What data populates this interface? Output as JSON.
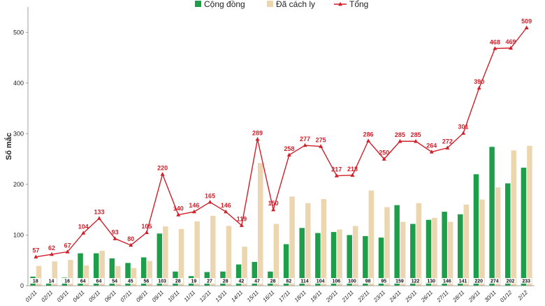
{
  "chart_data": {
    "type": "bar",
    "ylabel": "Số mắc",
    "ylim": [
      0,
      550
    ],
    "yticks": [
      "0",
      "100",
      "200",
      "300",
      "400",
      "500"
    ],
    "categories": [
      "01/11",
      "02/11",
      "03/11",
      "04/11",
      "05/11",
      "06/11",
      "07/11",
      "08/11",
      "09/11",
      "10/11",
      "11/11",
      "12/11",
      "13/11",
      "14/11",
      "15/11",
      "16/11",
      "17/11",
      "18/11",
      "19/11",
      "20/11",
      "21/11",
      "22/11",
      "23/11",
      "24/11",
      "25/11",
      "26/11",
      "27/11",
      "28/11",
      "29/11",
      "30/11",
      "01/12",
      "2/12"
    ],
    "series": [
      {
        "name": "Cộng đồng",
        "kind": "bar",
        "color": "#1e9e4a",
        "values": [
          18,
          14,
          16,
          64,
          64,
          54,
          45,
          56,
          103,
          28,
          19,
          27,
          28,
          42,
          47,
          28,
          82,
          114,
          104,
          106,
          100,
          98,
          95,
          159,
          122,
          130,
          146,
          141,
          220,
          274,
          202,
          233
        ],
        "labels": [
          "18",
          "14",
          "16",
          "64",
          "64",
          "54",
          "45",
          "56",
          "103",
          "28",
          "19",
          "27",
          "28",
          "42",
          "47",
          "28",
          "82",
          "114",
          "104",
          "106",
          "100",
          "98",
          "95",
          "159",
          "122",
          "130",
          "146",
          "141",
          "220",
          "274",
          "202",
          "233"
        ]
      },
      {
        "name": "Đã cách ly",
        "kind": "bar",
        "color": "#ecd6b0",
        "values": [
          39,
          48,
          51,
          40,
          69,
          39,
          35,
          49,
          117,
          112,
          127,
          138,
          118,
          77,
          242,
          122,
          176,
          163,
          171,
          111,
          118,
          188,
          155,
          126,
          163,
          134,
          126,
          160,
          170,
          194,
          267,
          276
        ]
      },
      {
        "name": "Tổng",
        "kind": "line",
        "color": "#d11f2a",
        "values": [
          57,
          62,
          67,
          104,
          133,
          93,
          80,
          105,
          220,
          140,
          146,
          165,
          146,
          119,
          289,
          150,
          258,
          277,
          275,
          217,
          218,
          286,
          250,
          285,
          285,
          264,
          272,
          301,
          390,
          468,
          469,
          509
        ],
        "labels": [
          "57",
          "62",
          "67",
          "104",
          "133",
          "93",
          "80",
          "105",
          "220",
          "140",
          "146",
          "165",
          "146",
          "119",
          "289",
          "150",
          "258",
          "277",
          "275",
          "217",
          "218",
          "286",
          "250",
          "285",
          "285",
          "264",
          "272",
          "301",
          "390",
          "468",
          "469",
          "509"
        ]
      }
    ],
    "legend_position": "top-center",
    "grid": false
  }
}
